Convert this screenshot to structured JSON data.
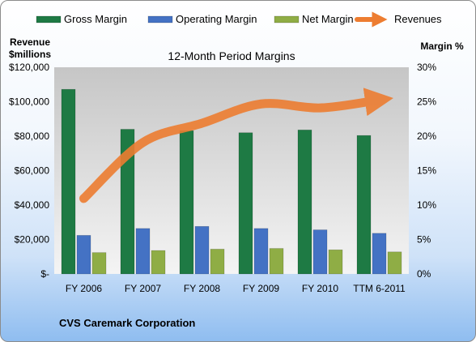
{
  "chart_data": {
    "type": "bar",
    "title": "12-Month Period Margins",
    "company": "CVS Caremark Corporation",
    "left_axis_label": [
      "Revenue",
      "$millions"
    ],
    "right_axis_label": "Margin %",
    "categories": [
      "FY 2006",
      "FY 2007",
      "FY 2008",
      "FY 2009",
      "FY 2010",
      "TTM 6-2011"
    ],
    "left_ticks": [
      "$-",
      "$20,000",
      "$40,000",
      "$60,000",
      "$80,000",
      "$100,000",
      "$120,000"
    ],
    "right_ticks": [
      "0%",
      "5%",
      "10%",
      "15%",
      "20%",
      "25%",
      "30%"
    ],
    "left_ylim": [
      0,
      120000
    ],
    "right_ylim": [
      0,
      30
    ],
    "bar_series": [
      {
        "name": "Gross Margin",
        "color": "#1e7a44",
        "values": [
          26.8,
          21.0,
          20.8,
          20.5,
          20.9,
          20.1
        ]
      },
      {
        "name": "Operating Margin",
        "color": "#4472c4",
        "values": [
          5.6,
          6.6,
          6.9,
          6.6,
          6.4,
          5.9
        ]
      },
      {
        "name": "Net Margin",
        "color": "#8fad45",
        "values": [
          3.1,
          3.4,
          3.6,
          3.7,
          3.5,
          3.2
        ]
      }
    ],
    "line_series": {
      "name": "Revenues",
      "color": "#ed7d31",
      "values": [
        43800,
        76300,
        87500,
        98700,
        96400,
        101000
      ]
    },
    "legend_position": "top",
    "grid": false
  }
}
